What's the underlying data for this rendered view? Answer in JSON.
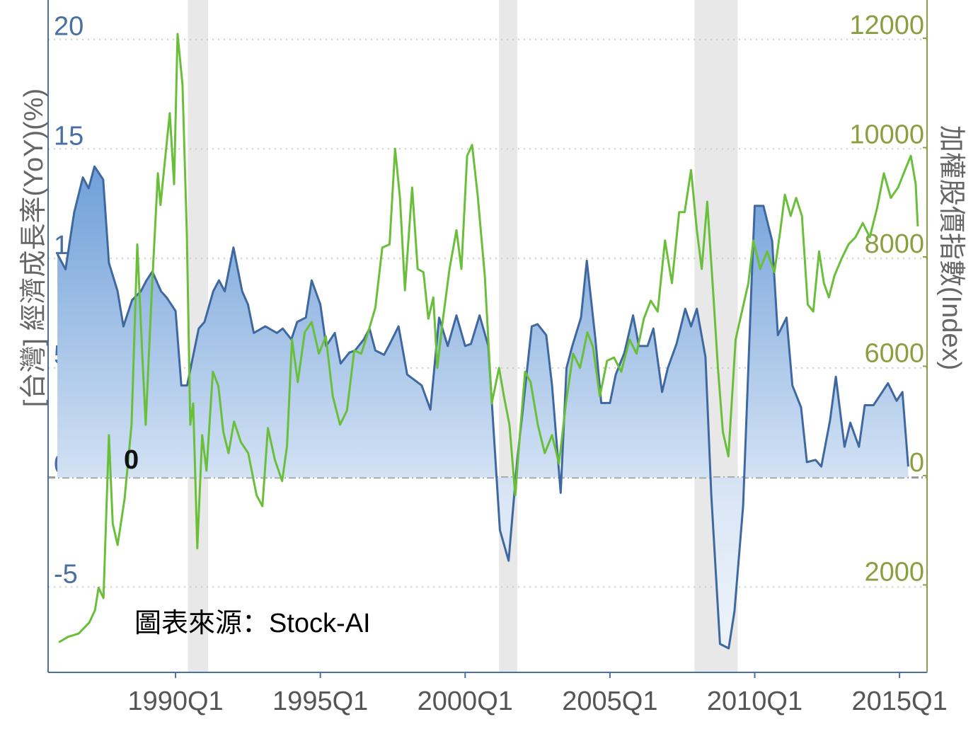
{
  "chart_data": {
    "type": "line",
    "ylabel": "[台灣] 經濟成長率(YoY)(%)",
    "y2label": "加權股價指數(Index)",
    "annotations": [
      "0",
      "圖表來源：Stock-AI"
    ],
    "xlim": [
      1985.6,
      2015.95
    ],
    "xticks": [
      {
        "value": 1990,
        "label": "1990Q1"
      },
      {
        "value": 1995,
        "label": "1995Q1"
      },
      {
        "value": 2000,
        "label": "2000Q1"
      },
      {
        "value": 2005,
        "label": "2005Q1"
      },
      {
        "value": 2010,
        "label": "2010Q1"
      },
      {
        "value": 2015,
        "label": "2015Q1"
      }
    ],
    "ylim": [
      -8.9,
      21.8
    ],
    "yticks": [
      -5,
      0,
      5,
      10,
      15,
      20
    ],
    "y2lim": [
      400,
      12700
    ],
    "y2ticks": [
      2000,
      4000,
      6000,
      8000,
      10000,
      12000
    ],
    "grid": true,
    "recessions": [
      [
        1990.43,
        1991.12
      ],
      [
        2001.17,
        2001.8
      ],
      [
        2007.92,
        2009.41
      ]
    ],
    "series": [
      {
        "color": "#3f68a0",
        "fill": true,
        "x": [
          1985.92,
          1986.2,
          1986.5,
          1986.8,
          1987.0,
          1987.2,
          1987.5,
          1987.7,
          1988.0,
          1988.2,
          1988.5,
          1988.8,
          1989.0,
          1989.2,
          1989.5,
          1989.7,
          1990.0,
          1990.2,
          1990.4,
          1990.8,
          1991.0,
          1991.3,
          1991.5,
          1991.7,
          1992.0,
          1992.3,
          1992.5,
          1992.7,
          1993.1,
          1993.5,
          1993.7,
          1994.0,
          1994.2,
          1994.5,
          1994.7,
          1995.0,
          1995.2,
          1995.5,
          1995.7,
          1996.0,
          1996.2,
          1996.5,
          1996.7,
          1996.9,
          1997.2,
          1997.4,
          1997.7,
          1998.0,
          1998.5,
          1998.8,
          1999.1,
          1999.4,
          1999.7,
          2000.0,
          2000.2,
          2000.5,
          2000.8,
          2001.2,
          2001.5,
          2001.8,
          2002.0,
          2002.3,
          2002.5,
          2002.8,
          2003.0,
          2003.3,
          2003.5,
          2003.7,
          2004.0,
          2004.2,
          2004.5,
          2004.7,
          2005.0,
          2005.2,
          2005.5,
          2005.8,
          2006.0,
          2006.3,
          2006.5,
          2006.8,
          2007.0,
          2007.3,
          2007.6,
          2007.8,
          2008.0,
          2008.3,
          2008.5,
          2008.8,
          2009.1,
          2009.3,
          2009.6,
          2009.9,
          2010.0,
          2010.3,
          2010.6,
          2010.8,
          2011.1,
          2011.3,
          2011.6,
          2011.8,
          2012.1,
          2012.3,
          2012.6,
          2012.8,
          2013.1,
          2013.3,
          2013.6,
          2013.8,
          2014.1,
          2014.4,
          2014.6,
          2014.9,
          2015.1,
          2015.3
        ],
        "values": [
          10.2,
          9.5,
          12.1,
          13.7,
          13.2,
          14.2,
          13.6,
          9.8,
          8.5,
          6.9,
          8.1,
          8.5,
          9.0,
          9.4,
          8.5,
          8.2,
          7.6,
          4.2,
          4.2,
          6.8,
          7.1,
          8.5,
          9.0,
          8.5,
          10.5,
          8.5,
          7.9,
          6.6,
          6.9,
          6.6,
          6.8,
          6.3,
          7.1,
          7.3,
          9.0,
          7.9,
          6.0,
          6.6,
          5.2,
          5.7,
          5.8,
          6.3,
          6.8,
          5.8,
          5.6,
          6.1,
          6.9,
          4.7,
          4.2,
          3.1,
          7.3,
          6.0,
          7.4,
          6.0,
          6.1,
          7.4,
          6.0,
          -2.4,
          -3.8,
          0.8,
          3.2,
          6.9,
          7.0,
          6.5,
          4.2,
          -0.7,
          5.0,
          6.0,
          7.3,
          9.9,
          6.3,
          3.4,
          3.4,
          4.7,
          5.7,
          7.4,
          6.0,
          6.0,
          6.8,
          3.9,
          5.0,
          6.1,
          7.7,
          6.9,
          7.7,
          5.5,
          -0.8,
          -7.6,
          -7.8,
          -6.1,
          -1.3,
          9.2,
          12.4,
          12.4,
          10.8,
          6.5,
          7.3,
          4.2,
          3.2,
          0.7,
          0.8,
          0.5,
          2.6,
          4.6,
          1.4,
          2.5,
          1.4,
          3.3,
          3.3,
          3.9,
          4.3,
          3.5,
          3.9,
          0.5
        ]
      },
      {
        "color": "#6abf3a",
        "axis": "y2",
        "x": [
          1985.97,
          1986.29,
          1986.65,
          1987.02,
          1987.22,
          1987.34,
          1987.51,
          1987.7,
          1987.83,
          1988.0,
          1988.24,
          1988.48,
          1988.68,
          1988.85,
          1988.97,
          1989.17,
          1989.39,
          1989.48,
          1989.7,
          1989.8,
          1989.95,
          1990.07,
          1990.24,
          1990.39,
          1990.51,
          1990.61,
          1990.75,
          1990.92,
          1991.07,
          1991.29,
          1991.48,
          1991.65,
          1991.83,
          1992.02,
          1992.26,
          1992.51,
          1992.8,
          1993.0,
          1993.19,
          1993.43,
          1993.68,
          1993.85,
          1994.02,
          1994.22,
          1994.46,
          1994.7,
          1994.95,
          1995.19,
          1995.43,
          1995.68,
          1995.92,
          1996.17,
          1996.41,
          1996.65,
          1996.9,
          1997.14,
          1997.39,
          1997.58,
          1997.75,
          1997.92,
          1998.17,
          1998.36,
          1998.56,
          1998.73,
          1998.9,
          1999.04,
          1999.22,
          1999.46,
          1999.7,
          1999.87,
          2000.07,
          2000.24,
          2000.43,
          2000.68,
          2000.92,
          2001.17,
          2001.34,
          2001.53,
          2001.73,
          2001.9,
          2002.07,
          2002.26,
          2002.51,
          2002.75,
          2003.0,
          2003.24,
          2003.48,
          2003.73,
          2003.97,
          2004.22,
          2004.41,
          2004.65,
          2004.9,
          2005.14,
          2005.39,
          2005.68,
          2005.92,
          2006.17,
          2006.41,
          2006.65,
          2006.9,
          2007.14,
          2007.39,
          2007.58,
          2007.8,
          2008.0,
          2008.17,
          2008.36,
          2008.56,
          2008.73,
          2008.9,
          2009.09,
          2009.34,
          2009.53,
          2009.78,
          2009.95,
          2010.19,
          2010.43,
          2010.68,
          2010.87,
          2011.04,
          2011.24,
          2011.43,
          2011.63,
          2011.83,
          2012.02,
          2012.22,
          2012.39,
          2012.56,
          2012.75,
          2013.0,
          2013.24,
          2013.48,
          2013.73,
          2013.97,
          2014.22,
          2014.46,
          2014.7,
          2014.95,
          2015.19,
          2015.39,
          2015.56,
          2015.63
        ],
        "values": [
          950,
          1050,
          1110,
          1310,
          1540,
          1950,
          1760,
          4740,
          3120,
          2730,
          3570,
          4930,
          8230,
          6230,
          4930,
          7260,
          9530,
          8950,
          10110,
          10630,
          9330,
          12080,
          11150,
          8430,
          4930,
          5320,
          2670,
          4740,
          4090,
          5900,
          5640,
          4800,
          4410,
          4990,
          4610,
          4410,
          3640,
          3440,
          4870,
          4290,
          3900,
          4540,
          6490,
          5710,
          6620,
          6810,
          6230,
          6550,
          5450,
          4930,
          5190,
          6290,
          6230,
          6620,
          7070,
          8170,
          8230,
          9980,
          9080,
          7390,
          9270,
          7780,
          7720,
          6870,
          7260,
          5970,
          6810,
          7780,
          8490,
          7780,
          9850,
          10050,
          9140,
          7650,
          5320,
          5970,
          5450,
          4930,
          3640,
          4800,
          5900,
          5710,
          4930,
          4410,
          4740,
          4220,
          5320,
          6230,
          5970,
          6620,
          6360,
          5450,
          6100,
          6160,
          5900,
          6490,
          6230,
          6870,
          7200,
          7000,
          8300,
          7520,
          8820,
          8820,
          9590,
          8490,
          7780,
          9010,
          7390,
          5970,
          4800,
          4350,
          6490,
          6940,
          7520,
          8300,
          7780,
          8100,
          7720,
          8430,
          9140,
          8750,
          9080,
          8750,
          7130,
          7000,
          8100,
          7520,
          7260,
          7650,
          7970,
          8230,
          8360,
          8620,
          8360,
          8880,
          9530,
          9080,
          9270,
          9590,
          9850,
          9330,
          8560
        ]
      }
    ]
  }
}
